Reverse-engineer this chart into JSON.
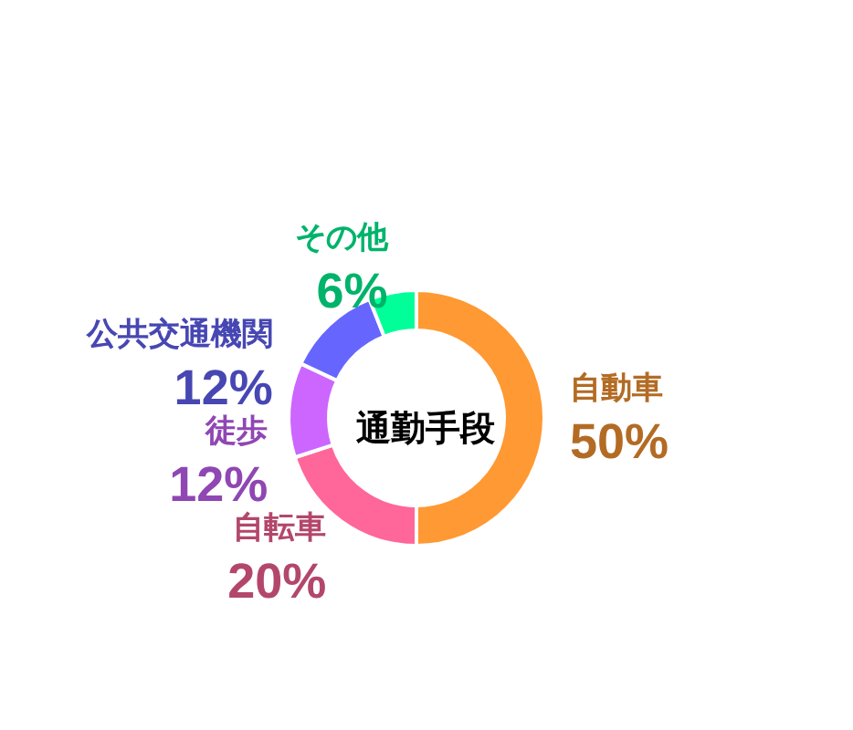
{
  "chart_data": {
    "type": "donut",
    "title": "通勤手段",
    "categories": [
      "自動車",
      "自転車",
      "徒歩",
      "公共交通機関",
      "その他"
    ],
    "values": [
      50,
      20,
      12,
      12,
      6
    ],
    "colors": [
      "#ff9933",
      "#ff6699",
      "#cc66ff",
      "#6666ff",
      "#00ff99"
    ],
    "value_labels": [
      "50%",
      "20%",
      "12%",
      "12%",
      "6%"
    ],
    "legend": false
  }
}
